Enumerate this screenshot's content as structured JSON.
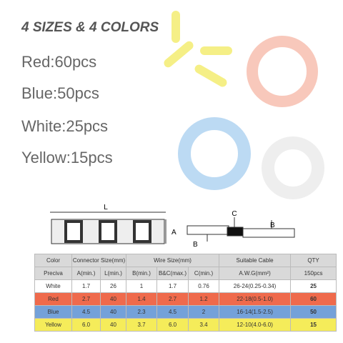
{
  "header": {
    "title": "4 SIZES & 4 COLORS"
  },
  "quantities": [
    "Red:60pcs",
    "Blue:50pcs",
    "White:25pcs",
    "Yellow:15pcs"
  ],
  "diagram": {
    "labels": [
      "L",
      "A",
      "C",
      "B",
      "B"
    ]
  },
  "table": {
    "header": [
      "Color",
      "Connector Size(mm)",
      "Wire Size(mm)",
      "Suitable Cable",
      "QTY"
    ],
    "subheader": [
      "Preciva",
      "A(min.)",
      "L(min.)",
      "B(min.)",
      "B&C(max.)",
      "C(min.)",
      "A.W.G(mm²)",
      "150pcs"
    ],
    "rows": [
      [
        "White",
        "1.7",
        "26",
        "1",
        "1.7",
        "0.76",
        "26-24(0.25-0.34)",
        "25"
      ],
      [
        "Red",
        "2.7",
        "40",
        "1.4",
        "2.7",
        "1.2",
        "22-18(0.5-1.0)",
        "60"
      ],
      [
        "Blue",
        "4.5",
        "40",
        "2.3",
        "4.5",
        "2",
        "16-14(1.5-2.5)",
        "50"
      ],
      [
        "Yellow",
        "6.0",
        "40",
        "3.7",
        "6.0",
        "3.4",
        "12-10(4.0-6.0)",
        "15"
      ]
    ]
  }
}
